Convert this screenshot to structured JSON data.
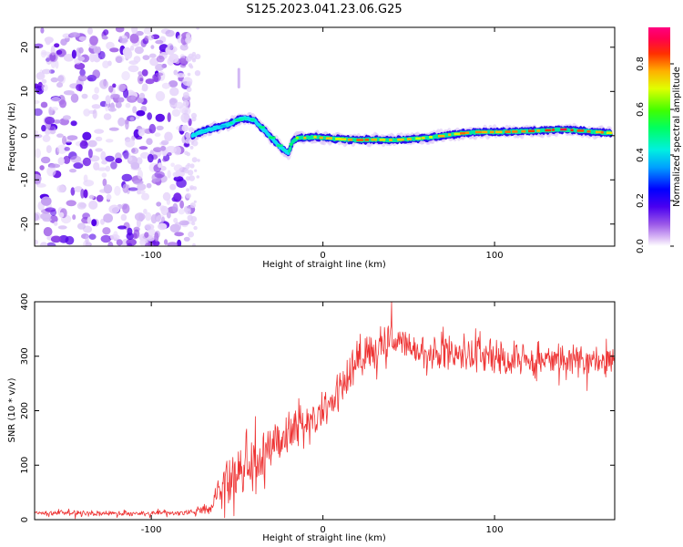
{
  "figure_title": "S125.2023.041.23.06.G25",
  "chart_data": [
    {
      "type": "heatmap",
      "title": "",
      "xlabel": "Height of straight line (km)",
      "ylabel": "Frequency (Hz)",
      "xlim": [
        -168,
        170
      ],
      "ylim": [
        -25,
        24.5
      ],
      "xticks": [
        -100,
        0,
        100
      ],
      "xtick_labels": [
        "-100",
        "0",
        "100"
      ],
      "yticks": [
        -20,
        -10,
        0,
        10,
        20
      ],
      "ytick_labels": [
        "-20",
        "-10",
        "0",
        "10",
        "20"
      ],
      "colorbar": {
        "label": "Normalized spectral amplitude",
        "range": [
          0,
          0.96
        ],
        "ticks": [
          0,
          0.2,
          0.4,
          0.6,
          0.8
        ],
        "tick_labels": [
          "0.0",
          "0.2",
          "0.4",
          "0.6",
          "0.8"
        ],
        "colormap": [
          "#ffffff",
          "#9b59e8",
          "#4a00f0",
          "#0000ff",
          "#00c8ff",
          "#00ff80",
          "#00ff00",
          "#c8ff00",
          "#ffd000",
          "#ff5000",
          "#ff0040",
          "#ff0080"
        ]
      },
      "noise_region_x": [
        -168,
        -77
      ],
      "signal_ridge": {
        "x": [
          -76,
          -70,
          -65,
          -60,
          -55,
          -50,
          -45,
          -40,
          -35,
          -30,
          -25,
          -20,
          -18,
          -15,
          -10,
          -5,
          0,
          10,
          20,
          30,
          40,
          50,
          60,
          70,
          80,
          90,
          100,
          110,
          120,
          130,
          140,
          150,
          160,
          168
        ],
        "frequency": [
          0,
          1,
          1.5,
          2,
          2.5,
          3.5,
          4,
          3.5,
          1.5,
          -0.5,
          -2.5,
          -4,
          -1.5,
          -0.5,
          -0.5,
          -0.3,
          -0.5,
          -0.8,
          -1,
          -0.9,
          -1,
          -0.8,
          -0.5,
          0,
          0.5,
          0.8,
          0.8,
          0.9,
          1,
          1.2,
          1.4,
          1.1,
          0.8,
          0.6
        ],
        "amplitude": [
          0.5,
          0.45,
          0.5,
          0.4,
          0.5,
          0.55,
          0.5,
          0.5,
          0.55,
          0.6,
          0.55,
          0.45,
          0.6,
          0.7,
          0.8,
          0.8,
          0.85,
          0.85,
          0.9,
          0.85,
          0.9,
          0.85,
          0.8,
          0.85,
          0.85,
          0.9,
          0.85,
          0.85,
          0.9,
          0.9,
          0.95,
          0.9,
          0.9,
          0.85
        ]
      },
      "faint_feature": {
        "x": -49,
        "frequency": [
          11,
          15
        ]
      }
    },
    {
      "type": "line",
      "title": "",
      "xlabel": "Height of straight line (km)",
      "ylabel": "SNR (10 * v/v)",
      "xlim": [
        -168,
        170
      ],
      "ylim": [
        0,
        400
      ],
      "xticks": [
        -100,
        0,
        100
      ],
      "xtick_labels": [
        "-100",
        "0",
        "100"
      ],
      "yticks": [
        0,
        100,
        200,
        300,
        400
      ],
      "ytick_labels": [
        "0",
        "100",
        "200",
        "300",
        "400"
      ],
      "series": [
        {
          "name": "SNR",
          "color": "#ee3333",
          "x": [
            -168,
            -140,
            -110,
            -80,
            -65,
            -60,
            -55,
            -50,
            -45,
            -40,
            -35,
            -30,
            -25,
            -20,
            -15,
            -10,
            -5,
            0,
            5,
            10,
            15,
            20,
            25,
            30,
            35,
            40,
            45,
            50,
            60,
            70,
            80,
            90,
            100,
            110,
            120,
            130,
            140,
            150,
            160,
            170
          ],
          "mean": [
            12,
            12,
            11,
            12,
            20,
            60,
            70,
            80,
            95,
            105,
            120,
            135,
            150,
            160,
            165,
            175,
            185,
            200,
            215,
            240,
            265,
            290,
            305,
            315,
            320,
            330,
            325,
            315,
            300,
            305,
            300,
            300,
            300,
            295,
            295,
            295,
            290,
            290,
            290,
            300
          ],
          "spread": [
            6,
            6,
            6,
            6,
            15,
            45,
            50,
            50,
            55,
            55,
            55,
            55,
            50,
            50,
            45,
            45,
            45,
            45,
            45,
            45,
            45,
            45,
            40,
            40,
            40,
            40,
            40,
            40,
            35,
            35,
            35,
            35,
            35,
            35,
            35,
            35,
            35,
            35,
            35,
            35
          ],
          "max_value": 400,
          "max_at_x": 40
        }
      ]
    }
  ]
}
